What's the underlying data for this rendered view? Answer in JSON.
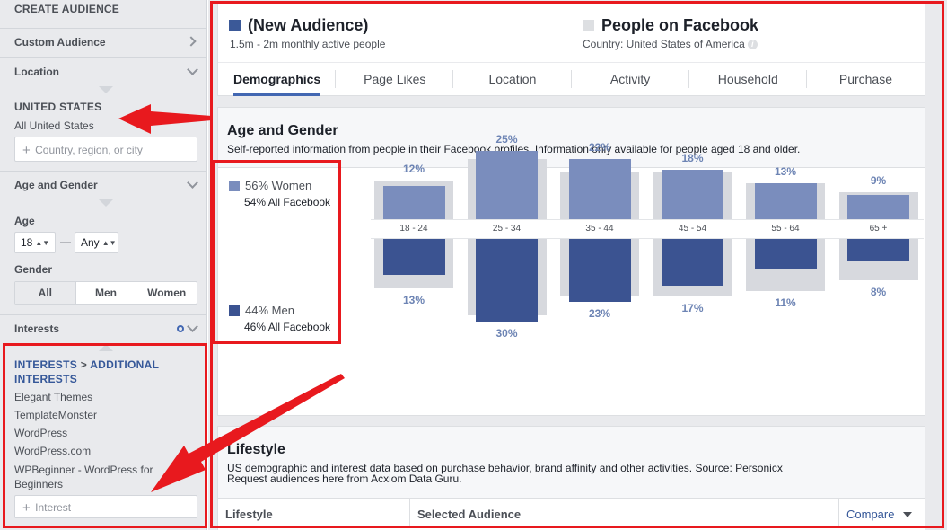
{
  "sidebar": {
    "header": "CREATE AUDIENCE",
    "custom_audience": "Custom Audience",
    "location": {
      "label": "Location",
      "country_heading": "UNITED STATES",
      "country_value": "All United States",
      "input_placeholder": "Country, region, or city"
    },
    "age_gender": {
      "label": "Age and Gender",
      "age_label": "Age",
      "age_from": "18",
      "age_to": "Any",
      "age_dash": "—",
      "gender_label": "Gender",
      "gender_options": [
        "All",
        "Men",
        "Women"
      ]
    },
    "interests": {
      "label": "Interests",
      "breadcrumb_first": "INTERESTS",
      "breadcrumb_sep": ">",
      "breadcrumb_second": "ADDITIONAL INTERESTS",
      "items": [
        "Elegant Themes",
        "TemplateMonster",
        "WordPress",
        "WordPress.com",
        "WPBeginner - WordPress for Beginners"
      ],
      "input_placeholder": "Interest"
    }
  },
  "audience": {
    "name": "(New Audience)",
    "size": "1.5m - 2m monthly active people",
    "color": "#3b5998",
    "compare_name": "People on Facebook",
    "compare_sub": "Country: United States of America",
    "compare_color": "#dddfe2"
  },
  "tabs": [
    "Demographics",
    "Page Likes",
    "Location",
    "Activity",
    "Household",
    "Purchase"
  ],
  "age_gender_card": {
    "title": "Age and Gender",
    "description": "Self-reported information from people in their Facebook profiles. Information only available for people aged 18 and older.",
    "women_legend": "56% Women",
    "women_all": "54% All Facebook",
    "men_legend": "44% Men",
    "men_all": "46% All Facebook",
    "women_color": "#7a8dbd",
    "men_color": "#3b5391",
    "baseline_color": "#d7d9de",
    "pct_color": "#6d84b4"
  },
  "chart_data": {
    "type": "bar",
    "categories": [
      "18 - 24",
      "25 - 34",
      "35 - 44",
      "45 - 54",
      "55 - 64",
      "65 +"
    ],
    "series": [
      {
        "name": "56% Women",
        "values": [
          12,
          25,
          22,
          18,
          13,
          9
        ],
        "labels": [
          "12%",
          "25%",
          "22%",
          "18%",
          "13%",
          "9%"
        ]
      },
      {
        "name": "44% Men",
        "values": [
          13,
          30,
          23,
          17,
          11,
          8
        ],
        "labels": [
          "13%",
          "30%",
          "23%",
          "17%",
          "11%",
          "8%"
        ]
      }
    ],
    "all_facebook_women_approx": [
      14,
      22,
      17,
      17,
      13,
      10
    ],
    "all_facebook_men_approx": [
      18,
      28,
      21,
      21,
      19,
      15
    ]
  },
  "lifestyle_card": {
    "title": "Lifestyle",
    "description": "US demographic and interest data based on purchase behavior, brand affinity and other activities. Source: Personicx",
    "link": "Request audiences here from Acxiom Data Guru.",
    "columns": [
      "Lifestyle",
      "Selected Audience",
      "Compare"
    ]
  }
}
